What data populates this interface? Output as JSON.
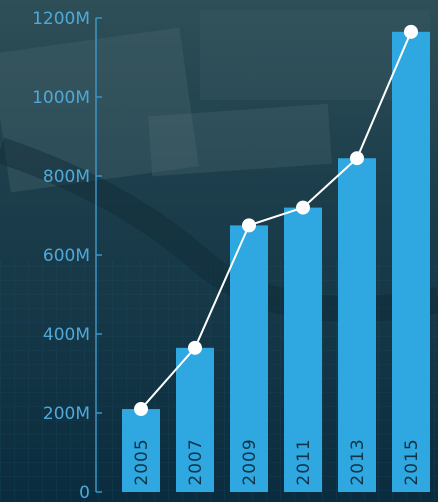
{
  "chart_data": {
    "type": "bar",
    "categories": [
      "2005",
      "2007",
      "2009",
      "2011",
      "2013",
      "2015"
    ],
    "values": [
      210,
      365,
      675,
      720,
      845,
      1165
    ],
    "line_series": [
      210,
      365,
      675,
      720,
      845,
      1165
    ],
    "title": "",
    "xlabel": "",
    "ylabel": "",
    "ylim": [
      0,
      1200
    ],
    "yticks": [
      {
        "value": 0,
        "label": "0"
      },
      {
        "value": 200,
        "label": "200M"
      },
      {
        "value": 400,
        "label": "400M"
      },
      {
        "value": 600,
        "label": "600M"
      },
      {
        "value": 800,
        "label": "800M"
      },
      {
        "value": 1000,
        "label": "1000M"
      },
      {
        "value": 1200,
        "label": "1200M"
      }
    ],
    "bar_color": "#2fa7e0",
    "line_color": "#ffffff",
    "axis_color": "#3a95c8",
    "grid": false,
    "background": "dark teal circuit-board photo"
  }
}
